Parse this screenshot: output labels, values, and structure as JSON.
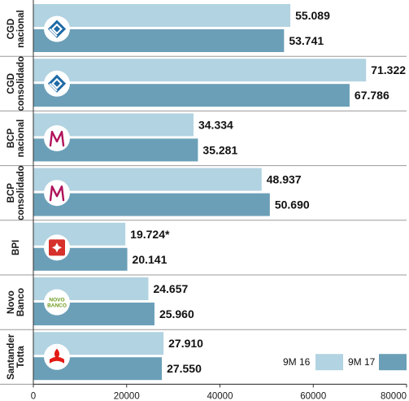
{
  "colors": {
    "series_9m16": "#b2d3e1",
    "series_9m17": "#6b9fb8",
    "logo_circle": "#ffffff",
    "cgd_icon": "#1f6aa6",
    "bcp_icon": "#b0125a",
    "bpi_icon": "#d6312b",
    "novo_banco_icon": "#6e9a1e",
    "santander_icon": "#e31a15"
  },
  "chart_data": {
    "type": "bar",
    "orientation": "horizontal",
    "categories": [
      "CGD\nnacional",
      "CGD\nconsolidado",
      "BCP\nnacional",
      "BCP\nconsolidado",
      "BPI",
      "Novo\nBanco",
      "Santander\nTotta"
    ],
    "series": [
      {
        "name": "9M 16",
        "values": [
          55089,
          71322,
          34334,
          48937,
          19724,
          24657,
          27910
        ],
        "labels": [
          "55.089",
          "71.322",
          "34.334",
          "48.937",
          "19.724*",
          "24.657",
          "27.910"
        ]
      },
      {
        "name": "9M 17",
        "values": [
          53741,
          67786,
          35281,
          50690,
          20141,
          25960,
          27550
        ],
        "labels": [
          "53.741",
          "67.786",
          "35.281",
          "50.690",
          "20.141",
          "25.960",
          "27.550"
        ]
      }
    ],
    "xlim": [
      0,
      80000
    ],
    "xticks": [
      "0",
      "20000",
      "40000",
      "60000",
      "80000"
    ],
    "legend": "bottom-right",
    "grid": false
  },
  "logos": [
    {
      "icon": "cgd-icon",
      "text": ""
    },
    {
      "icon": "cgd-icon",
      "text": ""
    },
    {
      "icon": "bcp-icon",
      "text": ""
    },
    {
      "icon": "bcp-icon",
      "text": ""
    },
    {
      "icon": "bpi-icon",
      "text": ""
    },
    {
      "icon": "novo-banco-icon",
      "text": "NOVO BANCO"
    },
    {
      "icon": "santander-icon",
      "text": ""
    }
  ]
}
